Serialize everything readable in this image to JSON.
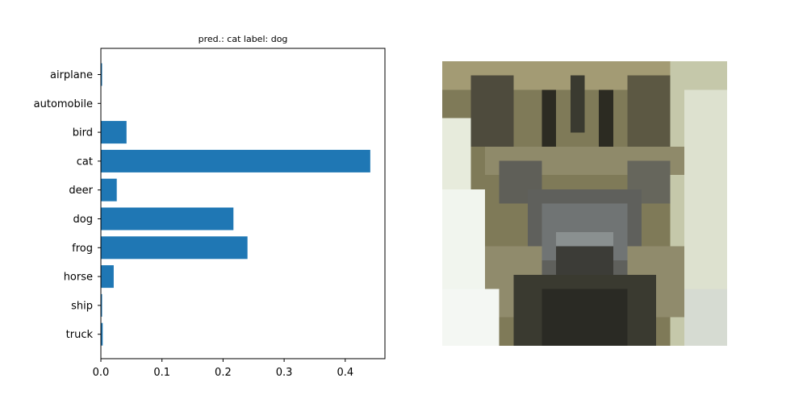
{
  "chart_data": {
    "type": "bar",
    "orientation": "horizontal",
    "title": "pred.: cat   label: dog",
    "categories": [
      "airplane",
      "automobile",
      "bird",
      "cat",
      "deer",
      "dog",
      "frog",
      "horse",
      "ship",
      "truck"
    ],
    "values": [
      0.002,
      0.0,
      0.042,
      0.441,
      0.026,
      0.217,
      0.24,
      0.021,
      0.002,
      0.003
    ],
    "xlim": [
      0,
      0.465
    ],
    "xticks": [
      "0.0",
      "0.1",
      "0.2",
      "0.3",
      "0.4"
    ],
    "xtick_values": [
      0.0,
      0.1,
      0.2,
      0.3,
      0.4
    ],
    "bar_color": "#1f77b4",
    "grid": false
  },
  "image": {
    "subject": "dog"
  }
}
